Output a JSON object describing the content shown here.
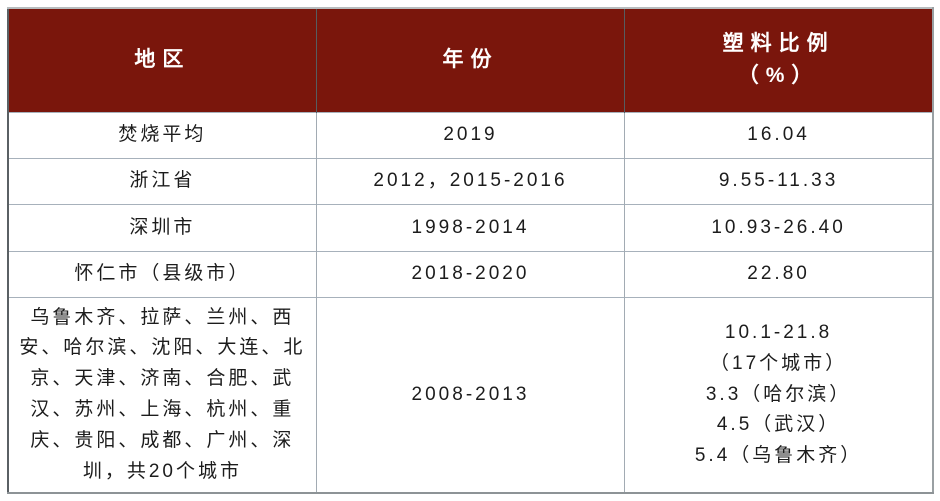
{
  "chart_data": {
    "type": "table",
    "columns": [
      "地区",
      "年份",
      "塑料比例\n（%）"
    ],
    "rows": [
      [
        "焚烧平均",
        "2019",
        "16.04"
      ],
      [
        "浙江省",
        "2012，2015-2016",
        "9.55-11.33"
      ],
      [
        "深圳市",
        "1998-2014",
        "10.93-26.40"
      ],
      [
        "怀仁市（县级市）",
        "2018-2020",
        "22.80"
      ],
      [
        "乌鲁木齐、拉萨、兰州、西安、哈尔滨、沈阳、大连、北京、天津、济南、合肥、武汉、苏州、上海、杭州、重庆、贵阳、成都、广州、深圳，共20个城市",
        "2008-2013",
        "10.1-21.8\n（17个城市）\n3.3（哈尔滨）\n4.5（武汉）\n5.4（乌鲁木齐）"
      ]
    ],
    "layout": {
      "header_position": "top",
      "grid": "on",
      "legend": "none"
    }
  },
  "colors": {
    "header_bg": "#7a160c",
    "header_text": "#ffffff",
    "body_text": "#1c1c1c",
    "row_divider": "#a7b1bb",
    "column_divider_body": "#a2abb3",
    "column_divider_header": "#565c60",
    "outer_border": "#8d9396"
  }
}
